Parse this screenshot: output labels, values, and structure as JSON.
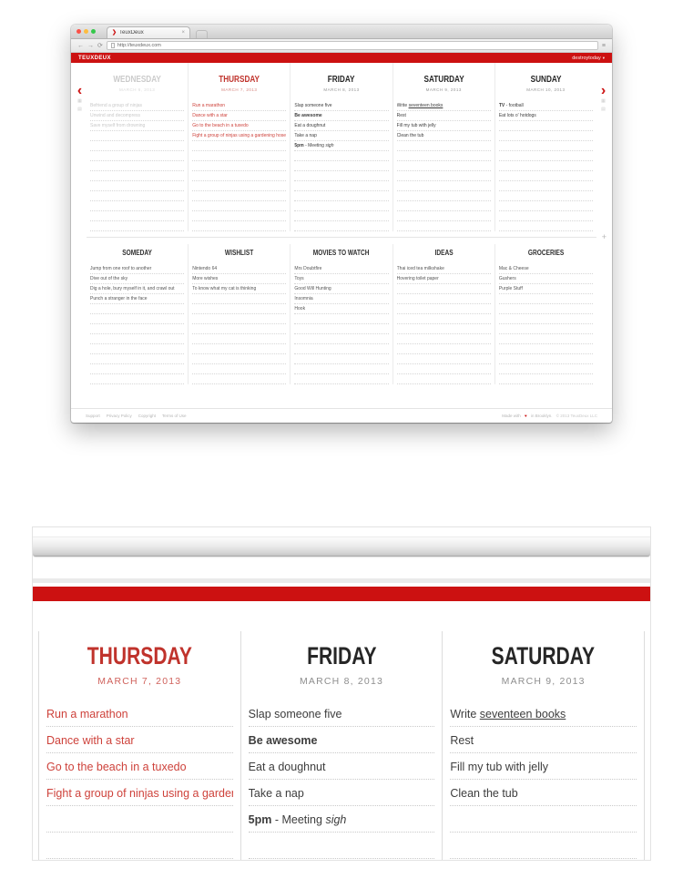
{
  "colors": {
    "brand_red": "#cc1111",
    "today_red": "#c0332c",
    "todo_red": "#ce423b",
    "ink": "#3d3d3d",
    "day_ink": "#262626",
    "date_gray": "#959595",
    "past_gray": "#c9c9c9",
    "dotted_line": "#d6d6d6",
    "separator": "#ebebeb",
    "footer_gray": "#b5b5b5"
  },
  "browser": {
    "tab_title": "TeuxDeux",
    "url": "http://teuxdeux.com",
    "icons": {
      "favicon": "❯",
      "close": "×",
      "back": "←",
      "forward": "→",
      "reload": "⟳",
      "menu": "≡"
    }
  },
  "app": {
    "logo": "TEUXDEUX",
    "user_menu": "destroytoday",
    "user_caret": "▾",
    "nav_prev": "‹",
    "nav_next": "›",
    "add_button": "+",
    "icons": {
      "calendar": "▦",
      "lists": "▤"
    },
    "days": [
      {
        "day": "WEDNESDAY",
        "date": "MARCH 6, 2013",
        "state": "past",
        "items": [
          [
            {
              "t": "Befriend a group of ninjas"
            }
          ],
          [
            {
              "t": "Unwind and decompress"
            }
          ],
          [
            {
              "t": "Save myself from drowning"
            }
          ]
        ]
      },
      {
        "day": "THURSDAY",
        "date": "MARCH 7, 2013",
        "state": "today",
        "items": [
          [
            {
              "t": "Run a marathon"
            }
          ],
          [
            {
              "t": "Dance with a star"
            }
          ],
          [
            {
              "t": "Go to the beach in a tuxedo"
            }
          ],
          [
            {
              "t": "Fight a group of ninjas using a gardening hose"
            }
          ]
        ]
      },
      {
        "day": "FRIDAY",
        "date": "MARCH 8, 2013",
        "state": "future",
        "items": [
          [
            {
              "t": "Slap someone five"
            }
          ],
          [
            {
              "t": "Be awesome",
              "s": "b"
            }
          ],
          [
            {
              "t": "Eat a doughnut"
            }
          ],
          [
            {
              "t": "Take a nap"
            }
          ],
          [
            {
              "t": "5pm",
              "s": "b"
            },
            {
              "t": " - Meeting "
            },
            {
              "t": "sigh",
              "s": "i"
            }
          ]
        ]
      },
      {
        "day": "SATURDAY",
        "date": "MARCH 9, 2013",
        "state": "future",
        "items": [
          [
            {
              "t": "Write "
            },
            {
              "t": "seventeen books",
              "s": "u"
            }
          ],
          [
            {
              "t": "Rest"
            }
          ],
          [
            {
              "t": "Fill my tub with jelly"
            }
          ],
          [
            {
              "t": "Clean the tub"
            }
          ]
        ]
      },
      {
        "day": "SUNDAY",
        "date": "MARCH 10, 2013",
        "state": "future",
        "items": [
          [
            {
              "t": "TV",
              "s": "b"
            },
            {
              "t": " - football"
            }
          ],
          [
            {
              "t": "Eat lots o' hotdogs"
            }
          ]
        ]
      }
    ],
    "lists": [
      {
        "title": "SOMEDAY",
        "items": [
          "Jump from one roof to another",
          "Dive out of the sky",
          "Dig a hole, bury myself in it, and crawl out",
          "Punch a stranger in the face"
        ]
      },
      {
        "title": "WISHLIST",
        "items": [
          "Nintendo 64",
          "More wishes",
          "To know what my cat is thinking"
        ]
      },
      {
        "title": "MOVIES TO WATCH",
        "items": [
          "Mrs Doubtfire",
          "Toys",
          "Good Will Hunting",
          "Insomnia",
          "Hook"
        ]
      },
      {
        "title": "IDEAS",
        "items": [
          "Thai iced tea milkshake",
          "Hovering toilet paper"
        ]
      },
      {
        "title": "GROCERIES",
        "items": [
          "Mac & Cheese",
          "Gushers",
          "Purple Stuff"
        ]
      }
    ],
    "footer": {
      "links": [
        "Support",
        "Privacy Policy",
        "Copyright",
        "Terms of Use"
      ],
      "tagline_pre": "Made with",
      "tagline_heart": "♥",
      "tagline_post": "in Brooklyn.",
      "copyright": "© 2013 TeuxDeux LLC"
    }
  },
  "detail": {
    "day_indexes": [
      1,
      2,
      3
    ]
  },
  "layout_hints": {
    "week_rows": 13,
    "list_rows": 12,
    "detail_rows": 7
  }
}
